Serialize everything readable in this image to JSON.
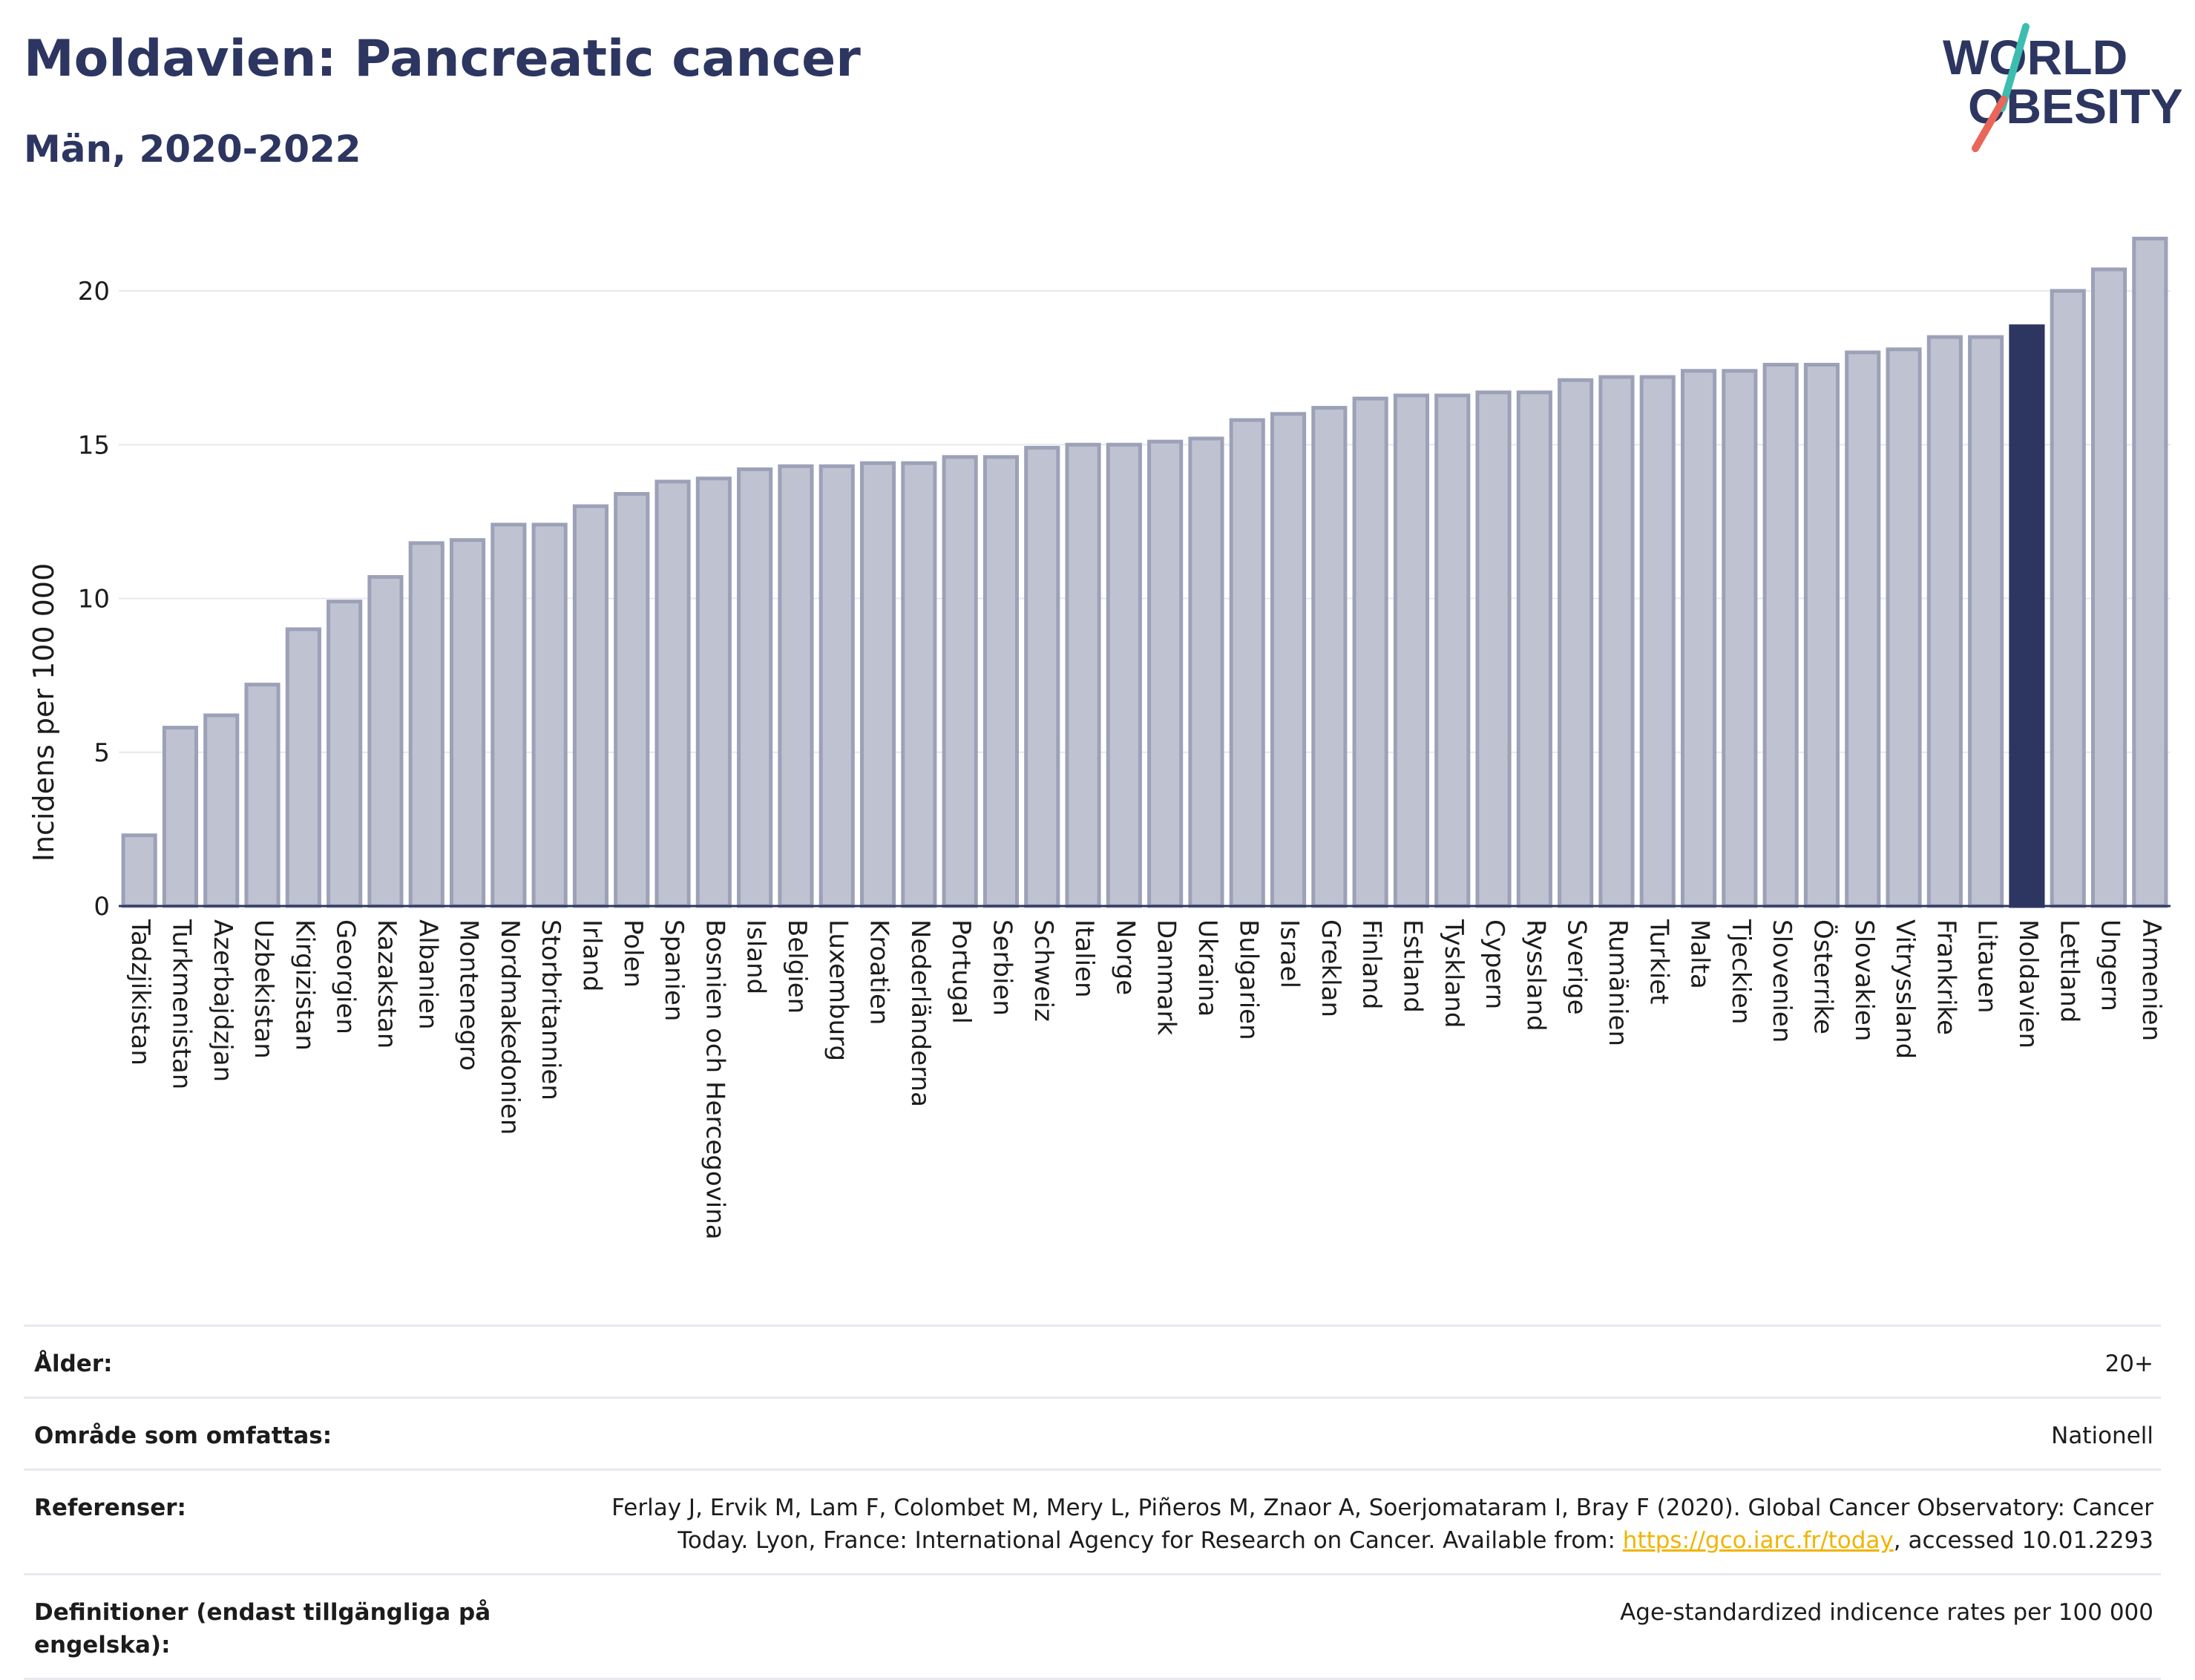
{
  "header": {
    "title": "Moldavien: Pancreatic cancer",
    "subtitle": "Män, 2020-2022"
  },
  "logo": {
    "line1": "WORLD",
    "line2": "OBESITY"
  },
  "colors": {
    "highlight_bar": "#2c3660",
    "bar_fill": "#bfc3d1",
    "bar_stroke": "#9ca1b8",
    "gridline": "#e6e8ee",
    "title": "#2c3660",
    "link": "#f0b400",
    "logo_slash_teal": "#3dbdb0",
    "logo_slash_red": "#e8675a"
  },
  "chart_data": {
    "type": "bar",
    "ylabel": "Incidens per 100 000",
    "ylim": [
      0,
      22
    ],
    "yticks": [
      0,
      5,
      10,
      15,
      20
    ],
    "grid": true,
    "highlight": "Moldavien",
    "categories": [
      "Tadzjikistan",
      "Turkmenistan",
      "Azerbajdzjan",
      "Uzbekistan",
      "Kirgizistan",
      "Georgien",
      "Kazakstan",
      "Albanien",
      "Montenegro",
      "Nordmakedonien",
      "Storbritannien",
      "Irland",
      "Polen",
      "Spanien",
      "Bosnien och Hercegovina",
      "Island",
      "Belgien",
      "Luxemburg",
      "Kroatien",
      "Nederländerna",
      "Portugal",
      "Serbien",
      "Schweiz",
      "Italien",
      "Norge",
      "Danmark",
      "Ukraina",
      "Bulgarien",
      "Israel",
      "Greklan",
      "Finland",
      "Estland",
      "Tyskland",
      "Cypern",
      "Ryssland",
      "Sverige",
      "Rumänien",
      "Turkiet",
      "Malta",
      "Tjeckien",
      "Slovenien",
      "Österrike",
      "Slovakien",
      "Vitryssland",
      "Frankrike",
      "Litauen",
      "Moldavien",
      "Lettland",
      "Ungern",
      "Armenien"
    ],
    "values": [
      2.3,
      5.8,
      6.2,
      7.2,
      9.0,
      9.9,
      10.7,
      11.8,
      11.9,
      12.4,
      12.4,
      13.0,
      13.4,
      13.8,
      13.9,
      14.2,
      14.3,
      14.3,
      14.4,
      14.4,
      14.6,
      14.6,
      14.9,
      15.0,
      15.0,
      15.1,
      15.2,
      15.8,
      16.0,
      16.2,
      16.5,
      16.6,
      16.6,
      16.7,
      16.7,
      17.1,
      17.2,
      17.2,
      17.4,
      17.4,
      17.6,
      17.6,
      18.0,
      18.1,
      18.5,
      18.5,
      18.85,
      20.0,
      20.7,
      21.7
    ]
  },
  "meta": {
    "age_label": "Ålder:",
    "age_value": "20+",
    "area_label": "Område som omfattas:",
    "area_value": "Nationell",
    "ref_label": "Referenser:",
    "ref_text_1": "Ferlay J, Ervik M, Lam F, Colombet M, Mery L, Piñeros M, Znaor A, Soerjomataram I, Bray F (2020). Global Cancer Observatory: Cancer",
    "ref_text_2": "Today. Lyon, France: International Agency for Research on Cancer. Available from: ",
    "ref_link": "https://gco.iarc.fr/today",
    "ref_text_3": ", accessed 10.01.2293",
    "def_label": "Definitioner (endast tillgängliga på engelska):",
    "def_value": "Age-standardized indicence rates per 100 000"
  }
}
